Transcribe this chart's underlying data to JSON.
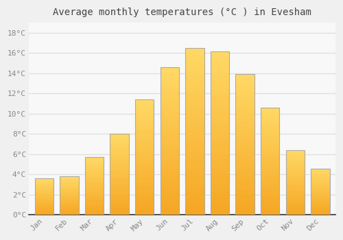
{
  "months": [
    "Jan",
    "Feb",
    "Mar",
    "Apr",
    "May",
    "Jun",
    "Jul",
    "Aug",
    "Sep",
    "Oct",
    "Nov",
    "Dec"
  ],
  "temperatures": [
    3.6,
    3.8,
    5.7,
    8.0,
    11.4,
    14.6,
    16.5,
    16.2,
    13.9,
    10.6,
    6.4,
    4.6
  ],
  "bar_color_bottom": "#F5A623",
  "bar_color_top": "#FFD966",
  "bar_edge_color": "#AAAAAA",
  "title": "Average monthly temperatures (°C ) in Evesham",
  "ylim": [
    0,
    19
  ],
  "yticks": [
    0,
    2,
    4,
    6,
    8,
    10,
    12,
    14,
    16,
    18
  ],
  "ytick_labels": [
    "0°C",
    "2°C",
    "4°C",
    "6°C",
    "8°C",
    "10°C",
    "12°C",
    "14°C",
    "16°C",
    "18°C"
  ],
  "background_color": "#f0f0f0",
  "plot_bg_color": "#f8f8f8",
  "grid_color": "#e0e0e0",
  "title_fontsize": 10,
  "tick_fontsize": 8,
  "bar_width": 0.75,
  "title_color": "#444444",
  "tick_color": "#888888",
  "axis_color": "#333333"
}
